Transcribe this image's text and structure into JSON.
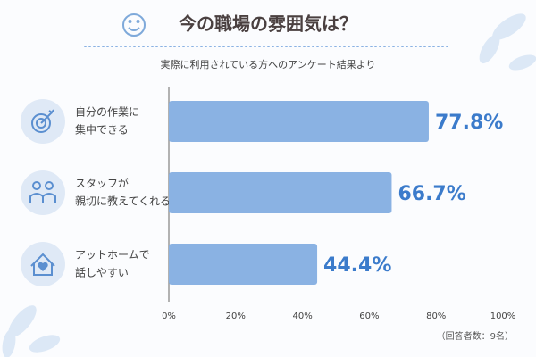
{
  "chart_data": {
    "type": "barh",
    "title": "今の職場の雰囲気は？",
    "subtitle": "実際に利用されている方へのアンケート結果より",
    "categories": [
      [
        "自分の作業に",
        "集中できる"
      ],
      [
        "スタッフが",
        "親切に教えてくれる"
      ],
      [
        "アットホームで",
        "話しやすい"
      ]
    ],
    "values": [
      77.8,
      66.7,
      44.4
    ],
    "value_labels": [
      "77.8%",
      "66.7%",
      "44.4%"
    ],
    "color": "#8ab2e3",
    "label_color": "#3b7bcb",
    "xlim": [
      0,
      100
    ],
    "xticks": [
      {
        "value": 0,
        "label": "0%"
      },
      {
        "value": 20,
        "label": "20%"
      },
      {
        "value": 40,
        "label": "40%"
      },
      {
        "value": 60,
        "label": "60%"
      },
      {
        "value": 80,
        "label": "80%"
      },
      {
        "value": 100,
        "label": "100%"
      }
    ],
    "note": "（回答者数：9名）"
  }
}
